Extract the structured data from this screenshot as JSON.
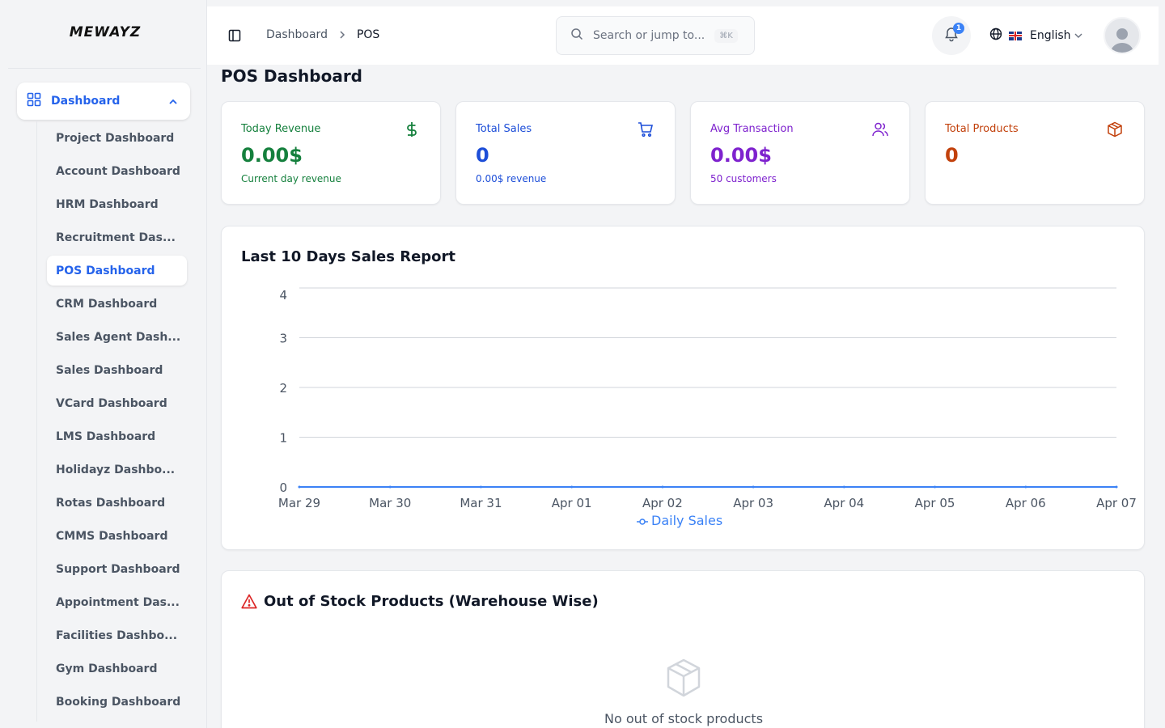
{
  "brand": {
    "logo_text": "MEWAYZ"
  },
  "sidebar": {
    "parent": {
      "label": "Dashboard"
    },
    "items": [
      {
        "label": "Project Dashboard",
        "active": false
      },
      {
        "label": "Account Dashboard",
        "active": false
      },
      {
        "label": "HRM Dashboard",
        "active": false
      },
      {
        "label": "Recruitment Das...",
        "active": false
      },
      {
        "label": "POS Dashboard",
        "active": true
      },
      {
        "label": "CRM Dashboard",
        "active": false
      },
      {
        "label": "Sales Agent Dash...",
        "active": false
      },
      {
        "label": "Sales Dashboard",
        "active": false
      },
      {
        "label": "VCard Dashboard",
        "active": false
      },
      {
        "label": "LMS Dashboard",
        "active": false
      },
      {
        "label": "Holidayz Dashbo...",
        "active": false
      },
      {
        "label": "Rotas Dashboard",
        "active": false
      },
      {
        "label": "CMMS Dashboard",
        "active": false
      },
      {
        "label": "Support Dashboard",
        "active": false
      },
      {
        "label": "Appointment Das...",
        "active": false
      },
      {
        "label": "Facilities Dashbo...",
        "active": false
      },
      {
        "label": "Gym Dashboard",
        "active": false
      },
      {
        "label": "Booking Dashboard",
        "active": false
      }
    ]
  },
  "header": {
    "breadcrumb": [
      "Dashboard",
      "POS"
    ],
    "search_placeholder": "Search or jump to...",
    "search_shortcut": "⌘K",
    "notification_count": "1",
    "language": "English"
  },
  "page": {
    "title": "POS Dashboard"
  },
  "stats": [
    {
      "label": "Today Revenue",
      "value": "0.00$",
      "sub": "Current day revenue",
      "color": "#15803d",
      "icon": "dollar-icon"
    },
    {
      "label": "Total Sales",
      "value": "0",
      "sub": "0.00$ revenue",
      "color": "#1d4ed8",
      "icon": "shopping-cart-icon"
    },
    {
      "label": "Avg Transaction",
      "value": "0.00$",
      "sub": "50 customers",
      "color": "#7e22ce",
      "icon": "users-icon"
    },
    {
      "label": "Total Products",
      "value": "0",
      "sub": "",
      "color": "#c2410c",
      "icon": "package-icon"
    }
  ],
  "sales_report": {
    "title": "Last 10 Days Sales Report"
  },
  "chart_data": {
    "type": "line",
    "x": [
      "Mar 29",
      "Mar 30",
      "Mar 31",
      "Apr 01",
      "Apr 02",
      "Apr 03",
      "Apr 04",
      "Apr 05",
      "Apr 06",
      "Apr 07"
    ],
    "series": [
      {
        "name": "Daily Sales",
        "values": [
          0,
          0,
          0,
          0,
          0,
          0,
          0,
          0,
          0,
          0
        ],
        "color": "#3b82f6"
      }
    ],
    "y_ticks": [
      0,
      1,
      2,
      3,
      4
    ],
    "ylim": [
      0,
      4
    ],
    "grid": true,
    "legend": "bottom-center"
  },
  "out_of_stock": {
    "title": "Out of Stock Products (Warehouse Wise)",
    "empty_text": "No out of stock products"
  }
}
